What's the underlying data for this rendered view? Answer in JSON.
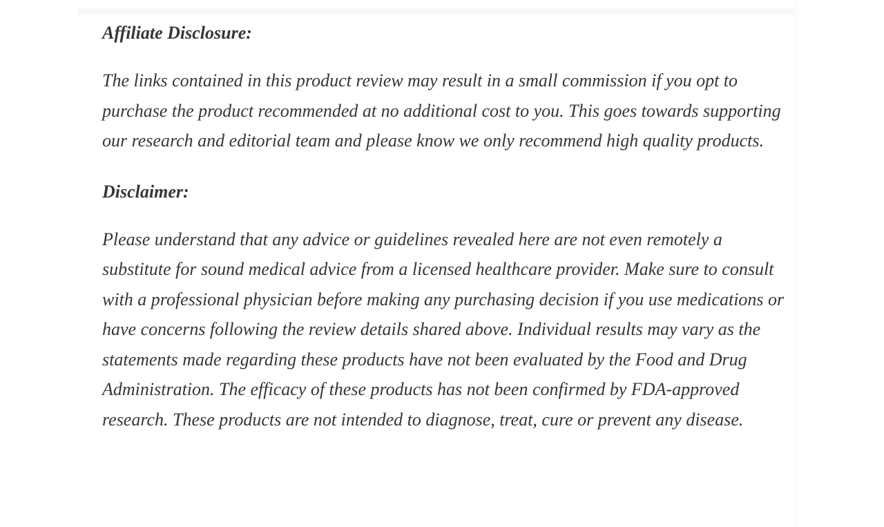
{
  "page": {
    "background_color": "#ffffff",
    "text_color": "#32373c",
    "divider_color": "#f7f7f8"
  },
  "sections": [
    {
      "heading": "Affiliate Disclosure:",
      "body": "The links contained in this product review may result in a small commission if you opt to purchase the product recommended at no additional cost to you. This goes towards supporting our research and editorial team and please know we only recommend high quality products."
    },
    {
      "heading": "Disclaimer:",
      "body": "Please understand that any advice or guidelines revealed here are not even remotely a substitute for sound medical advice from a licensed healthcare provider. Make sure to consult with a professional physician before making any purchasing decision if you use medications or have concerns following the review details shared above. Individual results may vary as the statements made regarding these products have not been evaluated by the Food and Drug Administration. The efficacy of these products has not been confirmed by FDA-approved research. These products are not intended to diagnose, treat, cure or prevent any disease."
    }
  ]
}
